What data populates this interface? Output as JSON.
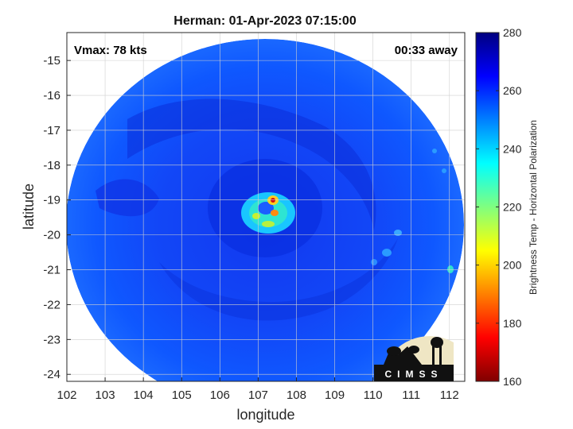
{
  "title": "Herman: 01-Apr-2023 07:15:00",
  "xlabel": "longitude",
  "ylabel": "latitude",
  "vmax_label": "Vmax: 78 kts",
  "time_away_label": "00:33 away",
  "colorbar": {
    "label": "Brightness Temp - Horizontal Polarization",
    "ticks": [
      "280",
      "260",
      "240",
      "220",
      "200",
      "180",
      "160"
    ]
  },
  "logo_text": "CIMSS",
  "map_data": {
    "type": "heatmap",
    "x_ticks": [
      "102",
      "103",
      "104",
      "105",
      "106",
      "107",
      "108",
      "109",
      "110",
      "111",
      "112"
    ],
    "y_ticks": [
      "-15",
      "-16",
      "-17",
      "-18",
      "-19",
      "-20",
      "-21",
      "-22",
      "-23",
      "-24"
    ],
    "xlim": [
      102,
      112.4
    ],
    "ylim": [
      -24.2,
      -14.2
    ],
    "clim": [
      160,
      280
    ],
    "colormap": "jet",
    "grid": true,
    "features": [
      {
        "name": "eye",
        "lon": 106.95,
        "lat": -19.15,
        "tb": 258
      },
      {
        "name": "eyewall-ring",
        "lon": 107.05,
        "lat": -19.25,
        "tb": 228
      },
      {
        "name": "convective-core",
        "lon": 107.38,
        "lat": -19.05,
        "tb": 185
      },
      {
        "name": "convective-core",
        "lon": 107.42,
        "lat": -19.38,
        "tb": 192
      },
      {
        "name": "convective-core",
        "lon": 107.3,
        "lat": -19.52,
        "tb": 202
      },
      {
        "name": "rain-cell",
        "lon": 110.8,
        "lat": -20.1,
        "tb": 240
      },
      {
        "name": "rain-cell",
        "lon": 110.6,
        "lat": -20.4,
        "tb": 244
      },
      {
        "name": "rain-cell",
        "lon": 112.05,
        "lat": -20.9,
        "tb": 238
      },
      {
        "name": "rain-cell",
        "lon": 111.9,
        "lat": -17.6,
        "tb": 246
      }
    ]
  }
}
